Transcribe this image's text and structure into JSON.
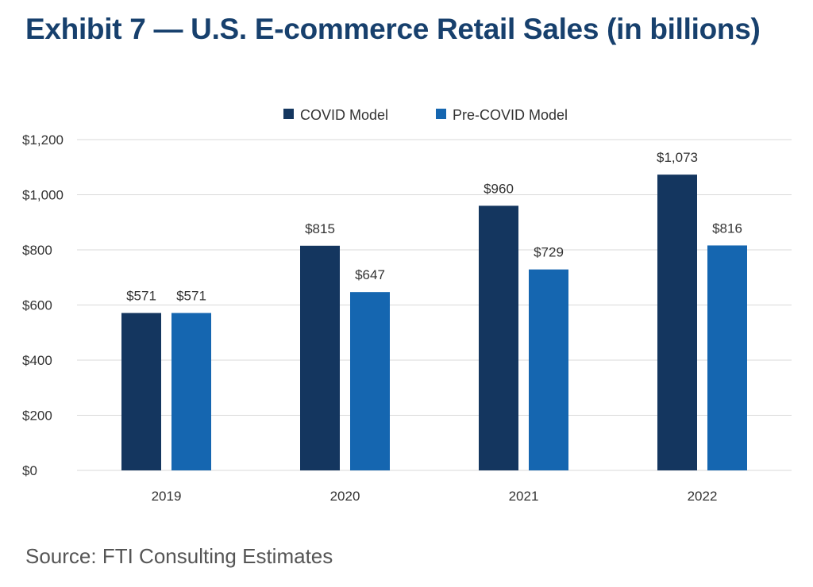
{
  "title": "Exhibit 7 — U.S. E-commerce Retail Sales (in billions)",
  "source": "Source: FTI Consulting Estimates",
  "colors": {
    "title": "#17406d",
    "covid": "#14365f",
    "pre_covid": "#1566b0"
  },
  "chart_data": {
    "type": "bar",
    "title": "Exhibit 7 — U.S. E-commerce Retail Sales (in billions)",
    "xlabel": "",
    "ylabel": "",
    "categories": [
      "2019",
      "2020",
      "2021",
      "2022"
    ],
    "series": [
      {
        "name": "COVID Model",
        "values": [
          571,
          815,
          960,
          1073
        ],
        "labels": [
          "$571",
          "$815",
          "$960",
          "$1,073"
        ],
        "color": "#14365f"
      },
      {
        "name": "Pre-COVID Model",
        "values": [
          571,
          647,
          729,
          816
        ],
        "labels": [
          "$571",
          "$647",
          "$729",
          "$816"
        ],
        "color": "#1566b0"
      }
    ],
    "ylim": [
      0,
      1200
    ],
    "yticks": [
      0,
      200,
      400,
      600,
      800,
      1000,
      1200
    ],
    "ytick_labels": [
      "$0",
      "$200",
      "$400",
      "$600",
      "$800",
      "$1,000",
      "$1,200"
    ],
    "grid": true,
    "legend_position": "top-center"
  }
}
